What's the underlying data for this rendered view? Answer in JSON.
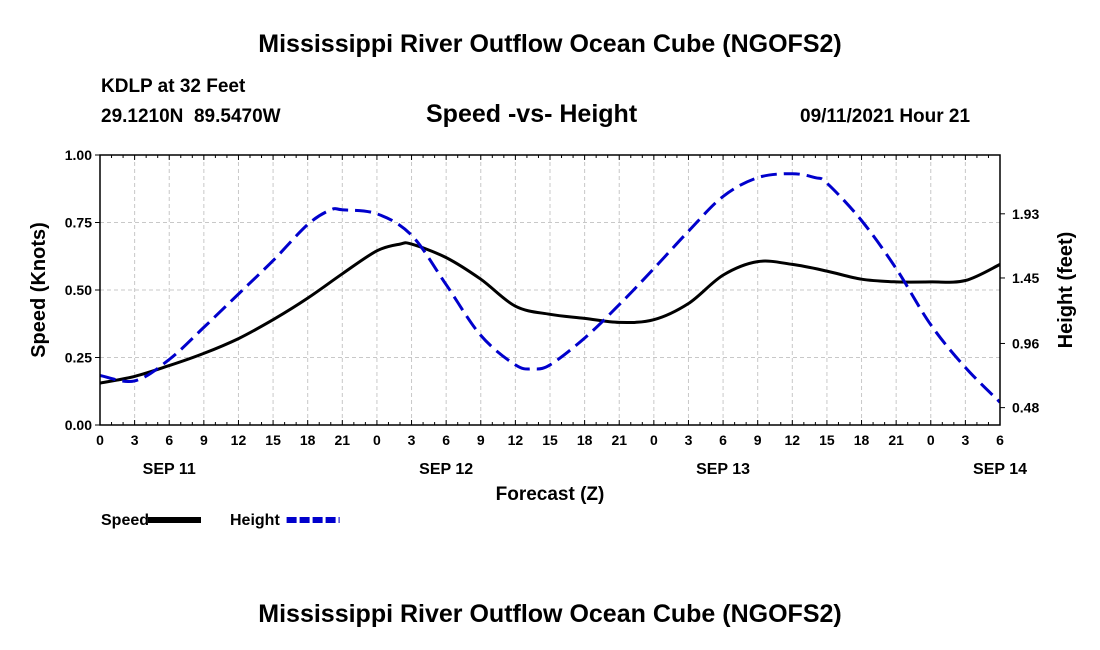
{
  "header": {
    "title": "Mississippi River Outflow Ocean Cube (NGOFS2)",
    "station": "KDLP at 32 Feet",
    "location": "29.1210N  89.5470W",
    "datetime": "09/11/2021 Hour 21"
  },
  "footer": {
    "title": "Mississippi River Outflow Ocean Cube (NGOFS2)"
  },
  "chart_data": {
    "type": "line",
    "title": "Speed -vs- Height",
    "xlabel": "Forecast (Z)",
    "ylabel": "Speed (Knots)",
    "y2label": "Height (feet)",
    "xlim": [
      0,
      78
    ],
    "ylim": [
      0,
      1.0
    ],
    "y2lim": [
      0.35,
      2.37
    ],
    "x_tick_labels": [
      "0",
      "3",
      "6",
      "9",
      "12",
      "15",
      "18",
      "21",
      "0",
      "3",
      "6",
      "9",
      "12",
      "15",
      "18",
      "21",
      "0",
      "3",
      "6",
      "9",
      "12",
      "15",
      "18",
      "21",
      "0",
      "3",
      "6"
    ],
    "y_ticks": [
      {
        "value": 0.0,
        "label": "0.00"
      },
      {
        "value": 0.25,
        "label": "0.25"
      },
      {
        "value": 0.5,
        "label": "0.50"
      },
      {
        "value": 0.75,
        "label": "0.75"
      },
      {
        "value": 1.0,
        "label": "1.00"
      }
    ],
    "y2_ticks": [
      {
        "value": 0.48,
        "label": "0.48"
      },
      {
        "value": 0.96,
        "label": "0.96"
      },
      {
        "value": 1.45,
        "label": "1.45"
      },
      {
        "value": 1.93,
        "label": "1.93"
      }
    ],
    "date_labels": [
      {
        "x": 6,
        "label": "SEP 11"
      },
      {
        "x": 30,
        "label": "SEP 12"
      },
      {
        "x": 54,
        "label": "SEP 13"
      },
      {
        "x": 78,
        "label": "SEP 14"
      }
    ],
    "grid": true,
    "series": [
      {
        "name": "Speed",
        "axis": "left",
        "color": "#000000",
        "dash": "solid",
        "x": [
          0,
          3,
          6,
          9,
          12,
          15,
          18,
          21,
          24,
          26,
          27,
          30,
          33,
          36,
          39,
          42,
          45,
          48,
          51,
          54,
          57,
          60,
          63,
          66,
          69,
          72,
          75,
          78
        ],
        "values": [
          0.155,
          0.18,
          0.22,
          0.265,
          0.32,
          0.39,
          0.47,
          0.56,
          0.645,
          0.67,
          0.67,
          0.62,
          0.54,
          0.44,
          0.41,
          0.395,
          0.38,
          0.39,
          0.45,
          0.555,
          0.605,
          0.595,
          0.57,
          0.54,
          0.53,
          0.53,
          0.535,
          0.595
        ]
      },
      {
        "name": "Height",
        "axis": "right",
        "color": "#0000cc",
        "dash": "dashed",
        "x": [
          0,
          3,
          6,
          9,
          12,
          15,
          18,
          20,
          21,
          24,
          27,
          30,
          33,
          36,
          37.5,
          39,
          42,
          45,
          48,
          51,
          54,
          57,
          60,
          62,
          63,
          66,
          69,
          72,
          75,
          78
        ],
        "values": [
          0.72,
          0.68,
          0.84,
          1.08,
          1.33,
          1.58,
          1.85,
          1.96,
          1.96,
          1.93,
          1.77,
          1.4,
          1.02,
          0.8,
          0.77,
          0.8,
          1.0,
          1.25,
          1.52,
          1.8,
          2.06,
          2.2,
          2.23,
          2.2,
          2.16,
          1.88,
          1.52,
          1.1,
          0.78,
          0.52
        ]
      }
    ],
    "legend": [
      {
        "label": "Speed",
        "color": "#000000",
        "dash": "solid"
      },
      {
        "label": "Height",
        "color": "#0000cc",
        "dash": "dashed"
      }
    ],
    "legend_position": "bottom-left"
  }
}
